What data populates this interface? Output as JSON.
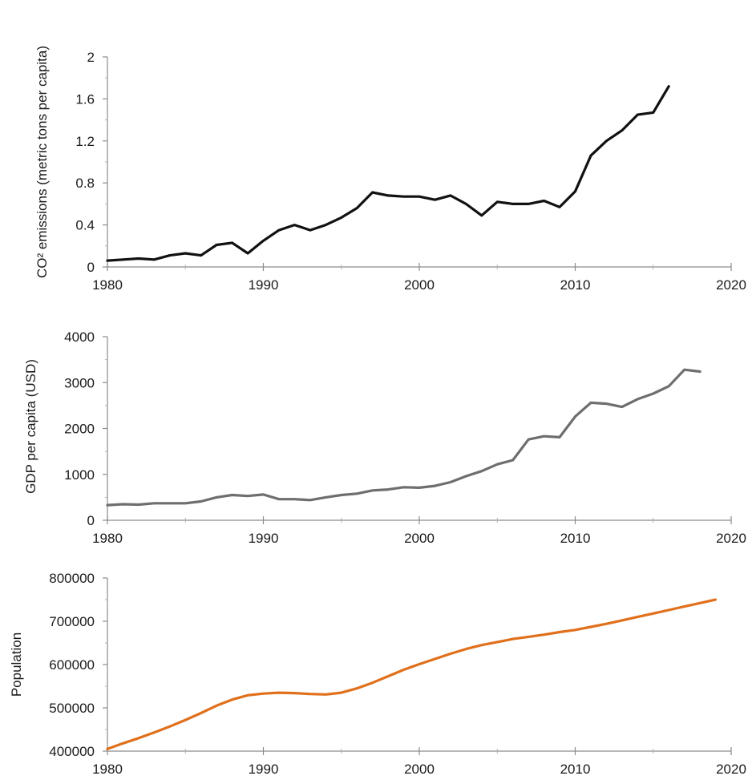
{
  "chart_data": [
    {
      "type": "line",
      "title": "",
      "xlabel": "",
      "ylabel": "CO² emissions (metric tons per capita)",
      "xlim": [
        1980,
        2020
      ],
      "ylim": [
        0,
        2
      ],
      "xticks": [
        "1980",
        "1990",
        "2000",
        "2010",
        "2020"
      ],
      "yticks": [
        "0",
        "0.4",
        "0.8",
        "1.2",
        "1.6",
        "2"
      ],
      "grid": false,
      "legend": "none",
      "color": "#111111",
      "series": [
        {
          "x": [
            1980,
            1981,
            1982,
            1983,
            1984,
            1985,
            1986,
            1987,
            1988,
            1989,
            1990,
            1991,
            1992,
            1993,
            1994,
            1995,
            1996,
            1997,
            1998,
            1999,
            2000,
            2001,
            2002,
            2003,
            2004,
            2005,
            2006,
            2007,
            2008,
            2009,
            2010,
            2011,
            2012,
            2013,
            2014,
            2015,
            2016
          ],
          "y": [
            0.06,
            0.07,
            0.08,
            0.07,
            0.11,
            0.13,
            0.11,
            0.21,
            0.23,
            0.13,
            0.25,
            0.35,
            0.4,
            0.35,
            0.4,
            0.47,
            0.56,
            0.71,
            0.68,
            0.67,
            0.67,
            0.64,
            0.68,
            0.6,
            0.49,
            0.62,
            0.6,
            0.6,
            0.63,
            0.57,
            0.72,
            1.06,
            1.2,
            1.3,
            1.45,
            1.47,
            1.72
          ]
        }
      ]
    },
    {
      "type": "line",
      "title": "",
      "xlabel": "",
      "ylabel": "GDP per capita (USD)",
      "xlim": [
        1980,
        2020
      ],
      "ylim": [
        0,
        4000
      ],
      "xticks": [
        "1980",
        "1990",
        "2000",
        "2010",
        "2020"
      ],
      "yticks": [
        "0",
        "1000",
        "2000",
        "3000",
        "4000"
      ],
      "grid": false,
      "legend": "none",
      "color": "#6e6e6e",
      "series": [
        {
          "x": [
            1980,
            1981,
            1982,
            1983,
            1984,
            1985,
            1986,
            1987,
            1988,
            1989,
            1990,
            1991,
            1992,
            1993,
            1994,
            1995,
            1996,
            1997,
            1998,
            1999,
            2000,
            2001,
            2002,
            2003,
            2004,
            2005,
            2006,
            2007,
            2008,
            2009,
            2010,
            2011,
            2012,
            2013,
            2014,
            2015,
            2016,
            2017,
            2018
          ],
          "y": [
            330,
            350,
            340,
            370,
            370,
            370,
            410,
            500,
            550,
            530,
            560,
            460,
            460,
            440,
            500,
            550,
            580,
            650,
            670,
            720,
            710,
            750,
            830,
            960,
            1070,
            1220,
            1310,
            1760,
            1830,
            1810,
            2260,
            2560,
            2540,
            2470,
            2640,
            2760,
            2920,
            3280,
            3240
          ]
        }
      ]
    },
    {
      "type": "line",
      "title": "",
      "xlabel": "",
      "ylabel": "Population",
      "xlim": [
        1980,
        2020
      ],
      "ylim": [
        400000,
        800000
      ],
      "xticks": [
        "1980",
        "1990",
        "2000",
        "2010",
        "2020"
      ],
      "yticks": [
        "400000",
        "500000",
        "600000",
        "700000",
        "800000"
      ],
      "grid": false,
      "legend": "none",
      "color": "#e0701c",
      "series": [
        {
          "x": [
            1980,
            1981,
            1982,
            1983,
            1984,
            1985,
            1986,
            1987,
            1988,
            1989,
            1990,
            1991,
            1992,
            1993,
            1994,
            1995,
            1996,
            1997,
            1998,
            1999,
            2000,
            2001,
            2002,
            2003,
            2004,
            2005,
            2006,
            2007,
            2008,
            2009,
            2010,
            2011,
            2012,
            2013,
            2014,
            2015,
            2016,
            2017,
            2018,
            2019
          ],
          "y": [
            405000,
            418000,
            430000,
            443000,
            457000,
            472000,
            488000,
            505000,
            519000,
            529000,
            533000,
            535000,
            534000,
            532000,
            531000,
            535000,
            545000,
            558000,
            573000,
            588000,
            601000,
            613000,
            625000,
            636000,
            645000,
            652000,
            659000,
            664000,
            669000,
            675000,
            680000,
            687000,
            694000,
            702000,
            710000,
            718000,
            726000,
            734000,
            742000,
            750000
          ]
        }
      ]
    }
  ]
}
